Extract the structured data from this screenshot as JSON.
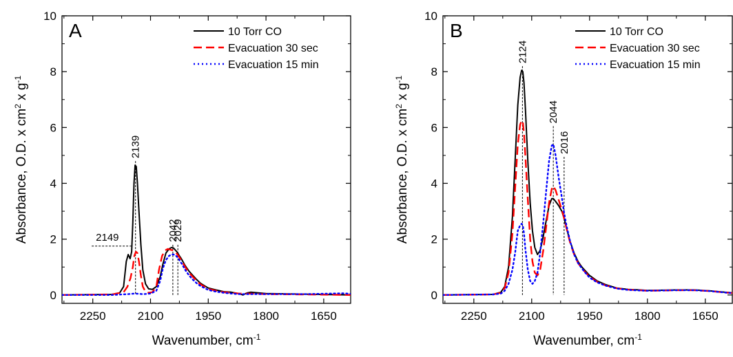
{
  "chart_data": [
    {
      "type": "line",
      "panel_label": "A",
      "xlabel": "Wavenumber, cm",
      "xlabel_sup": "-1",
      "ylabel": "Absorbance, O.D. x cm",
      "ylabel_sup1": "2",
      "ylabel_mid": " x g",
      "ylabel_sup2": "-1",
      "xlim": [
        2330,
        1580
      ],
      "ylim": [
        -0.3,
        10
      ],
      "xticks": [
        2250,
        2100,
        1950,
        1800,
        1650
      ],
      "xtick_labels": [
        "2250",
        "2100",
        "1950",
        "1800",
        "1650"
      ],
      "yticks": [
        0,
        2,
        4,
        6,
        8,
        10
      ],
      "ytick_labels": [
        "0",
        "2",
        "4",
        "6",
        "8",
        "10"
      ],
      "legend_position": "top-right",
      "series": [
        {
          "name": "10 Torr CO",
          "color": "#000000",
          "style": "solid",
          "x": [
            2330,
            2200,
            2180,
            2170,
            2163,
            2158,
            2153,
            2149,
            2146,
            2143,
            2140,
            2137,
            2134,
            2130,
            2125,
            2120,
            2113,
            2105,
            2095,
            2085,
            2075,
            2068,
            2060,
            2052,
            2045,
            2040,
            2035,
            2030,
            2025,
            2020,
            2010,
            2000,
            1990,
            1980,
            1970,
            1960,
            1950,
            1930,
            1910,
            1890,
            1870,
            1860,
            1850,
            1840,
            1800,
            1700,
            1580
          ],
          "y": [
            0.0,
            0.02,
            0.08,
            0.3,
            1.2,
            1.45,
            1.3,
            1.55,
            2.6,
            4.0,
            4.65,
            4.6,
            4.0,
            3.0,
            1.8,
            0.9,
            0.4,
            0.22,
            0.2,
            0.3,
            0.65,
            1.1,
            1.5,
            1.65,
            1.7,
            1.68,
            1.6,
            1.52,
            1.4,
            1.3,
            1.05,
            0.85,
            0.7,
            0.55,
            0.42,
            0.33,
            0.25,
            0.18,
            0.12,
            0.1,
            0.05,
            0.0,
            0.07,
            0.1,
            0.05,
            0.03,
            0.0
          ]
        },
        {
          "name": "Evacuation 30 sec",
          "color": "#ff0000",
          "style": "dashed",
          "x": [
            2330,
            2200,
            2170,
            2160,
            2152,
            2146,
            2142,
            2138,
            2134,
            2130,
            2125,
            2120,
            2113,
            2105,
            2095,
            2085,
            2078,
            2070,
            2062,
            2055,
            2048,
            2042,
            2036,
            2030,
            2025,
            2018,
            2010,
            2000,
            1990,
            1980,
            1970,
            1960,
            1950,
            1930,
            1910,
            1890,
            1870,
            1850,
            1800,
            1700,
            1580
          ],
          "y": [
            0.0,
            0.02,
            0.1,
            0.3,
            0.6,
            1.0,
            1.4,
            1.55,
            1.5,
            1.2,
            0.7,
            0.3,
            0.12,
            0.08,
            0.1,
            0.3,
            0.9,
            1.4,
            1.6,
            1.65,
            1.62,
            1.6,
            1.55,
            1.45,
            1.35,
            1.2,
            1.0,
            0.8,
            0.65,
            0.5,
            0.38,
            0.3,
            0.22,
            0.15,
            0.1,
            0.08,
            0.05,
            0.05,
            0.03,
            0.02,
            0.0
          ]
        },
        {
          "name": "Evacuation 15 min",
          "color": "#0000ff",
          "style": "dotted",
          "x": [
            2330,
            2200,
            2160,
            2140,
            2120,
            2100,
            2085,
            2075,
            2068,
            2060,
            2052,
            2045,
            2040,
            2035,
            2030,
            2025,
            2018,
            2010,
            2000,
            1990,
            1980,
            1970,
            1960,
            1950,
            1930,
            1910,
            1890,
            1870,
            1850,
            1800,
            1700,
            1600,
            1580
          ],
          "y": [
            0.0,
            0.0,
            0.03,
            0.05,
            0.03,
            0.05,
            0.15,
            0.5,
            0.95,
            1.25,
            1.4,
            1.45,
            1.45,
            1.42,
            1.35,
            1.25,
            1.1,
            0.9,
            0.7,
            0.55,
            0.42,
            0.32,
            0.25,
            0.18,
            0.12,
            0.08,
            0.05,
            0.03,
            0.03,
            0.03,
            0.03,
            0.06,
            0.04
          ]
        }
      ],
      "peak_labels": [
        {
          "text": "2139",
          "x": 2139,
          "y": 4.65,
          "dir": "down"
        },
        {
          "text": "2042",
          "x": 2042,
          "y": 1.65,
          "dir": "down"
        },
        {
          "text": "2029",
          "x": 2029,
          "y": 1.65,
          "dir": "down"
        },
        {
          "text": "2149",
          "x": 2149,
          "y": 1.75,
          "dir": "left"
        }
      ]
    },
    {
      "type": "line",
      "panel_label": "B",
      "xlabel": "Wavenumber, cm",
      "xlabel_sup": "-1",
      "ylabel": "Absorbance, O.D. x cm",
      "ylabel_sup1": "2",
      "ylabel_mid": " x g",
      "ylabel_sup2": "-1",
      "xlim": [
        2330,
        1580
      ],
      "ylim": [
        -0.3,
        10
      ],
      "xticks": [
        2250,
        2100,
        1950,
        1800,
        1650
      ],
      "xtick_labels": [
        "2250",
        "2100",
        "1950",
        "1800",
        "1650"
      ],
      "yticks": [
        0,
        2,
        4,
        6,
        8,
        10
      ],
      "ytick_labels": [
        "0",
        "2",
        "4",
        "6",
        "8",
        "10"
      ],
      "legend_position": "top-right",
      "series": [
        {
          "name": "10 Torr CO",
          "color": "#000000",
          "style": "solid",
          "x": [
            2330,
            2200,
            2180,
            2170,
            2160,
            2150,
            2143,
            2136,
            2130,
            2126,
            2123,
            2120,
            2116,
            2110,
            2104,
            2098,
            2092,
            2085,
            2078,
            2070,
            2062,
            2055,
            2048,
            2044,
            2038,
            2030,
            2022,
            2016,
            2010,
            2000,
            1990,
            1980,
            1970,
            1960,
            1950,
            1930,
            1910,
            1880,
            1850,
            1820,
            1800,
            1760,
            1720,
            1680,
            1640,
            1600,
            1580
          ],
          "y": [
            0.0,
            0.02,
            0.1,
            0.3,
            1.0,
            2.8,
            4.8,
            6.8,
            7.8,
            8.05,
            8.0,
            7.6,
            6.6,
            4.8,
            3.3,
            2.3,
            1.7,
            1.45,
            1.6,
            2.1,
            2.7,
            3.2,
            3.45,
            3.45,
            3.35,
            3.2,
            3.0,
            2.75,
            2.4,
            1.9,
            1.5,
            1.2,
            1.0,
            0.85,
            0.7,
            0.5,
            0.38,
            0.25,
            0.2,
            0.18,
            0.16,
            0.17,
            0.18,
            0.18,
            0.15,
            0.1,
            0.08
          ]
        },
        {
          "name": "Evacuation 30 sec",
          "color": "#ff0000",
          "style": "dashed",
          "x": [
            2330,
            2200,
            2180,
            2170,
            2160,
            2150,
            2143,
            2136,
            2130,
            2126,
            2123,
            2120,
            2116,
            2110,
            2104,
            2098,
            2092,
            2085,
            2078,
            2070,
            2062,
            2055,
            2048,
            2044,
            2038,
            2030,
            2022,
            2016,
            2010,
            2000,
            1990,
            1980,
            1970,
            1960,
            1950,
            1930,
            1910,
            1880,
            1850,
            1820,
            1800,
            1760,
            1720,
            1680,
            1640,
            1600,
            1580
          ],
          "y": [
            0.0,
            0.02,
            0.08,
            0.25,
            0.8,
            2.2,
            3.8,
            5.4,
            6.1,
            6.25,
            6.2,
            5.8,
            4.9,
            3.4,
            2.0,
            1.2,
            0.8,
            0.7,
            0.9,
            1.6,
            2.5,
            3.3,
            3.8,
            3.9,
            3.75,
            3.4,
            3.05,
            2.75,
            2.4,
            1.85,
            1.45,
            1.15,
            0.95,
            0.8,
            0.65,
            0.47,
            0.35,
            0.24,
            0.19,
            0.17,
            0.15,
            0.16,
            0.17,
            0.17,
            0.14,
            0.09,
            0.07
          ]
        },
        {
          "name": "Evacuation 15 min",
          "color": "#0000ff",
          "style": "dotted",
          "x": [
            2330,
            2200,
            2180,
            2170,
            2160,
            2150,
            2143,
            2136,
            2130,
            2126,
            2123,
            2120,
            2116,
            2110,
            2104,
            2098,
            2092,
            2085,
            2078,
            2070,
            2062,
            2055,
            2048,
            2044,
            2038,
            2030,
            2022,
            2016,
            2010,
            2000,
            1990,
            1980,
            1970,
            1960,
            1950,
            1930,
            1910,
            1880,
            1850,
            1820,
            1800,
            1760,
            1720,
            1680,
            1640,
            1600,
            1580
          ],
          "y": [
            0.0,
            0.02,
            0.05,
            0.15,
            0.4,
            0.9,
            1.5,
            2.3,
            2.5,
            2.55,
            2.5,
            2.2,
            1.6,
            0.9,
            0.5,
            0.4,
            0.5,
            0.8,
            1.5,
            2.6,
            3.8,
            4.8,
            5.35,
            5.4,
            5.0,
            4.2,
            3.5,
            2.95,
            2.5,
            1.9,
            1.45,
            1.15,
            0.95,
            0.78,
            0.62,
            0.45,
            0.34,
            0.23,
            0.18,
            0.16,
            0.15,
            0.16,
            0.17,
            0.17,
            0.14,
            0.09,
            0.07
          ]
        }
      ],
      "peak_labels": [
        {
          "text": "2124",
          "x": 2124,
          "y": 8.05,
          "dir": "down"
        },
        {
          "text": "2044",
          "x": 2044,
          "y": 5.9,
          "dir": "down"
        },
        {
          "text": "2016",
          "x": 2016,
          "y": 4.8,
          "dir": "down"
        }
      ]
    }
  ]
}
